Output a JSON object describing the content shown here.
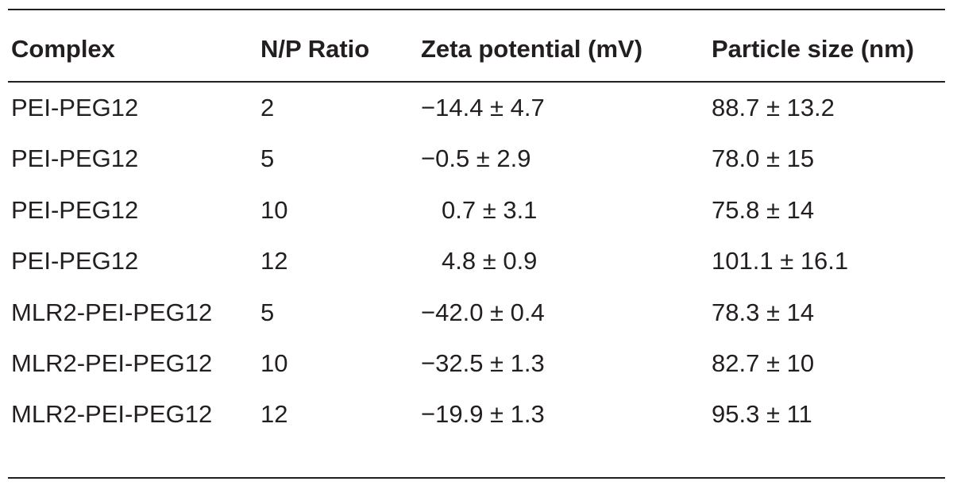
{
  "table": {
    "headers": [
      "Complex",
      "N/P Ratio",
      "Zeta potential (mV)",
      "Particle size (nm)"
    ],
    "rows": [
      [
        "PEI-PEG12",
        "2",
        "−14.4 ± 4.7",
        "88.7 ± 13.2"
      ],
      [
        "PEI-PEG12",
        "5",
        "−0.5 ± 2.9",
        "78.0 ± 15"
      ],
      [
        "PEI-PEG12",
        "10",
        "0.7 ± 3.1",
        "75.8 ± 14"
      ],
      [
        "PEI-PEG12",
        "12",
        "4.8 ± 0.9",
        "101.1 ± 16.1"
      ],
      [
        "MLR2-PEI-PEG12",
        "5",
        "−42.0 ± 0.4",
        "78.3 ± 14"
      ],
      [
        "MLR2-PEI-PEG12",
        "10",
        "−32.5 ± 1.3",
        "82.7 ± 10"
      ],
      [
        "MLR2-PEI-PEG12",
        "12",
        "−19.9 ± 1.3",
        "95.3 ± 11"
      ]
    ]
  }
}
